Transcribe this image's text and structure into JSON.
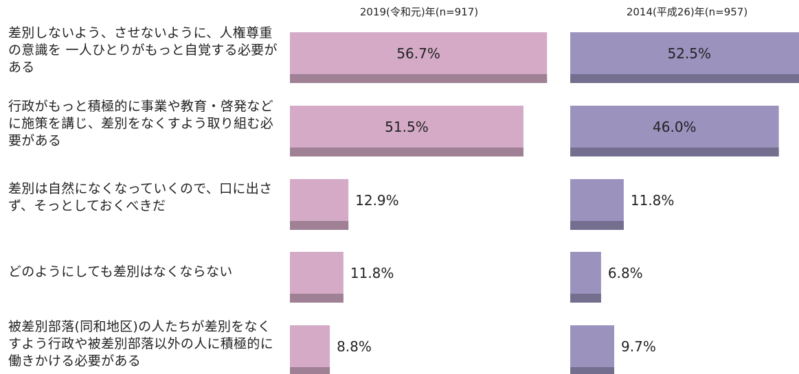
{
  "chart_data": {
    "type": "bar",
    "categories": [
      "差別しないよう、させないように、人権尊重の意識を 一人ひとりがもっと自覚する必要がある",
      "行政がもっと積極的に事業や教育・啓発などに施策を講じ、差別をなくすよう取り組む必要がある",
      "差別は自然になくなっていくので、口に出さず、そっとしておくべきだ",
      "どのようにしても差別はなくならない",
      "被差別部落(同和地区)の人たちが差別をなくすよう行政や被差別部落以外の人に積極的に働きかける必要がある"
    ],
    "series": [
      {
        "name": "2019(令和元)年(n=917)",
        "color": "#d4aac6",
        "values": [
          56.7,
          51.5,
          12.9,
          11.8,
          8.8
        ],
        "value_labels": [
          "56.7%",
          "51.5%",
          "12.9%",
          "11.8%",
          "8.8%"
        ]
      },
      {
        "name": "2014(平成26)年(n=957)",
        "color": "#9b92be",
        "values": [
          52.5,
          46.0,
          11.8,
          6.8,
          9.7
        ],
        "value_labels": [
          "52.5%",
          "46.0%",
          "11.8%",
          "6.8%",
          "9.7%"
        ]
      }
    ]
  }
}
